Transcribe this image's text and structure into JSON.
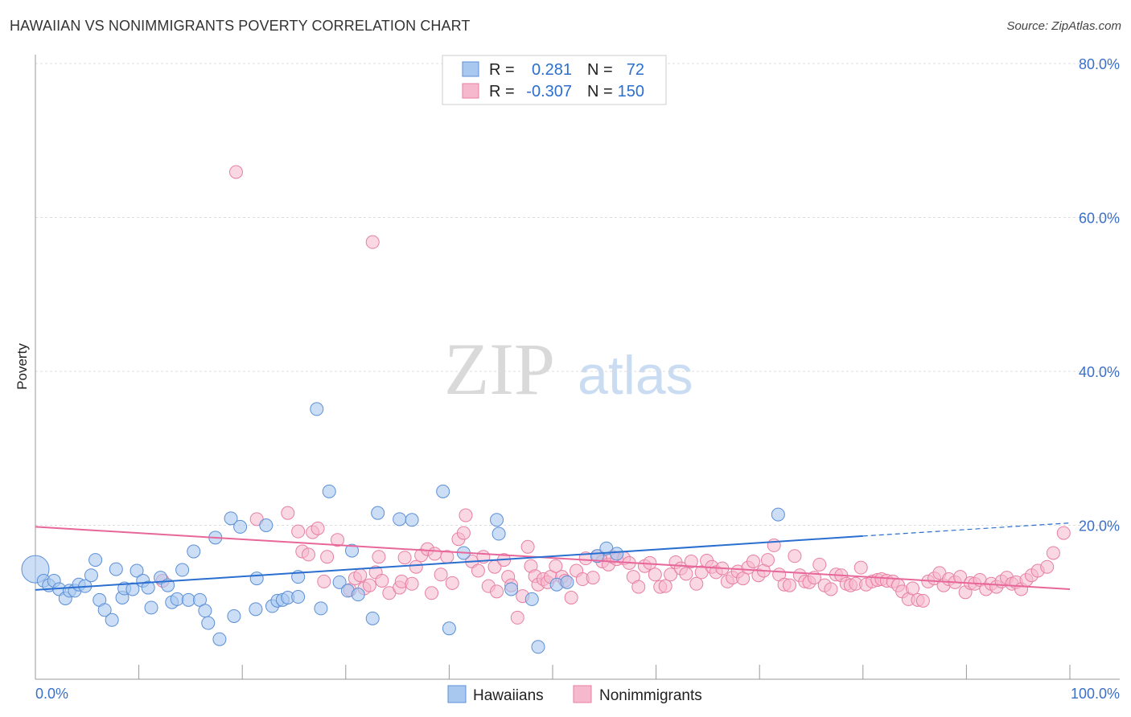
{
  "header": {
    "title": "HAWAIIAN VS NONIMMIGRANTS POVERTY CORRELATION CHART",
    "source": "Source: ZipAtlas.com"
  },
  "watermark": {
    "part1": "ZIP",
    "part2": "atlas"
  },
  "legend": {
    "rows": [
      {
        "r_label": "R =",
        "r_value": "0.281",
        "n_label": "N =",
        "n_value": "72",
        "color": "#a8c8f0"
      },
      {
        "r_label": "R =",
        "r_value": "-0.307",
        "n_label": "N =",
        "n_value": "150",
        "color": "#f5b8cc"
      }
    ]
  },
  "bottom_legend": [
    {
      "label": "Hawaiians",
      "color": "#a8c8f0"
    },
    {
      "label": "Nonimmigrants",
      "color": "#f5b8cc"
    }
  ],
  "colors": {
    "hawaiian_fill": "#a8c8f0",
    "hawaiian_stroke": "#5b8fd6",
    "hawaiian_line": "#2a6fd0",
    "nonimm_fill": "#f5b8cc",
    "nonimm_stroke": "#e77fa2",
    "nonimm_line": "#e8679a",
    "axis_text": "#3b6fc8"
  },
  "chart_data": {
    "type": "scatter",
    "title": "HAWAIIAN VS NONIMMIGRANTS POVERTY CORRELATION CHART",
    "xlabel": "",
    "ylabel": "Poverty",
    "xlim": [
      0,
      100
    ],
    "ylim": [
      0,
      80
    ],
    "x_tick_labels": [
      "0.0%",
      "100.0%"
    ],
    "y_ticks": [
      20,
      40,
      60,
      80
    ],
    "y_tick_labels": [
      "20.0%",
      "40.0%",
      "60.0%",
      "80.0%"
    ],
    "grid": true,
    "legend_position": "top-center",
    "series": [
      {
        "name": "Hawaiians",
        "R": 0.281,
        "N": 72,
        "trend": {
          "x": [
            0,
            80
          ],
          "y": [
            11.6,
            18.6
          ],
          "dashed_extension": {
            "x": [
              80,
              100
            ],
            "y": [
              18.6,
              20.3
            ]
          }
        },
        "points": [
          [
            0.0,
            14.3
          ],
          [
            0.8,
            12.8
          ],
          [
            1.3,
            12.2
          ],
          [
            1.8,
            12.8
          ],
          [
            2.3,
            11.7
          ],
          [
            2.9,
            10.5
          ],
          [
            3.3,
            11.5
          ],
          [
            3.8,
            11.5
          ],
          [
            4.2,
            12.3
          ],
          [
            4.8,
            12.1
          ],
          [
            5.4,
            13.5
          ],
          [
            5.8,
            15.5
          ],
          [
            6.2,
            10.3
          ],
          [
            6.7,
            9.0
          ],
          [
            7.4,
            7.7
          ],
          [
            7.8,
            14.3
          ],
          [
            8.4,
            10.6
          ],
          [
            8.6,
            11.8
          ],
          [
            9.4,
            11.7
          ],
          [
            9.8,
            14.1
          ],
          [
            10.4,
            12.8
          ],
          [
            10.9,
            11.9
          ],
          [
            11.2,
            9.3
          ],
          [
            12.1,
            13.2
          ],
          [
            12.8,
            12.2
          ],
          [
            13.2,
            10.0
          ],
          [
            13.7,
            10.4
          ],
          [
            14.2,
            14.2
          ],
          [
            14.8,
            10.3
          ],
          [
            15.3,
            16.6
          ],
          [
            15.9,
            10.3
          ],
          [
            16.4,
            8.9
          ],
          [
            16.7,
            7.3
          ],
          [
            17.4,
            18.4
          ],
          [
            17.8,
            5.2
          ],
          [
            18.9,
            20.9
          ],
          [
            19.2,
            8.2
          ],
          [
            19.8,
            19.8
          ],
          [
            21.4,
            13.1
          ],
          [
            21.3,
            9.1
          ],
          [
            22.3,
            20.0
          ],
          [
            22.9,
            9.5
          ],
          [
            23.4,
            10.2
          ],
          [
            23.9,
            10.3
          ],
          [
            24.4,
            10.6
          ],
          [
            25.4,
            13.3
          ],
          [
            25.4,
            10.7
          ],
          [
            27.2,
            35.1
          ],
          [
            27.6,
            9.2
          ],
          [
            28.4,
            24.4
          ],
          [
            29.4,
            12.6
          ],
          [
            30.2,
            11.5
          ],
          [
            30.6,
            16.7
          ],
          [
            31.2,
            11.0
          ],
          [
            32.6,
            7.9
          ],
          [
            33.1,
            21.6
          ],
          [
            35.2,
            20.8
          ],
          [
            36.4,
            20.7
          ],
          [
            39.4,
            24.4
          ],
          [
            40.0,
            6.6
          ],
          [
            41.4,
            16.4
          ],
          [
            44.6,
            20.7
          ],
          [
            44.8,
            18.9
          ],
          [
            46.0,
            11.7
          ],
          [
            48.0,
            10.4
          ],
          [
            48.6,
            4.2
          ],
          [
            50.4,
            12.3
          ],
          [
            51.4,
            12.6
          ],
          [
            54.3,
            16.0
          ],
          [
            55.2,
            17.0
          ],
          [
            56.2,
            16.3
          ],
          [
            71.8,
            21.4
          ]
        ]
      },
      {
        "name": "Nonimmigrants",
        "R": -0.307,
        "N": 150,
        "trend": {
          "x": [
            0,
            100
          ],
          "y": [
            19.8,
            11.7
          ]
        },
        "points": [
          [
            19.4,
            65.9
          ],
          [
            32.6,
            56.8
          ],
          [
            12.3,
            12.8
          ],
          [
            21.4,
            20.8
          ],
          [
            24.4,
            21.6
          ],
          [
            25.4,
            19.2
          ],
          [
            25.8,
            16.6
          ],
          [
            26.4,
            16.2
          ],
          [
            26.8,
            19.1
          ],
          [
            27.3,
            19.6
          ],
          [
            27.9,
            12.7
          ],
          [
            28.2,
            15.9
          ],
          [
            29.2,
            18.1
          ],
          [
            30.4,
            11.6
          ],
          [
            30.9,
            13.1
          ],
          [
            31.4,
            13.5
          ],
          [
            31.8,
            11.8
          ],
          [
            32.3,
            12.2
          ],
          [
            32.9,
            13.9
          ],
          [
            33.2,
            15.9
          ],
          [
            33.5,
            12.8
          ],
          [
            34.2,
            11.2
          ],
          [
            35.2,
            11.9
          ],
          [
            35.4,
            12.7
          ],
          [
            35.7,
            15.8
          ],
          [
            36.4,
            12.4
          ],
          [
            36.8,
            14.6
          ],
          [
            37.3,
            16.1
          ],
          [
            37.9,
            16.9
          ],
          [
            38.3,
            11.2
          ],
          [
            38.6,
            16.3
          ],
          [
            39.2,
            13.6
          ],
          [
            39.8,
            15.9
          ],
          [
            40.3,
            12.5
          ],
          [
            40.9,
            18.2
          ],
          [
            41.4,
            19.0
          ],
          [
            41.6,
            21.3
          ],
          [
            42.2,
            15.3
          ],
          [
            42.8,
            14.1
          ],
          [
            43.3,
            15.9
          ],
          [
            43.8,
            12.1
          ],
          [
            44.4,
            14.6
          ],
          [
            44.6,
            11.4
          ],
          [
            45.3,
            15.5
          ],
          [
            45.7,
            13.3
          ],
          [
            46.0,
            12.2
          ],
          [
            46.6,
            8.0
          ],
          [
            47.1,
            10.8
          ],
          [
            47.6,
            17.2
          ],
          [
            47.9,
            14.7
          ],
          [
            48.3,
            13.4
          ],
          [
            48.6,
            12.3
          ],
          [
            49.1,
            13.0
          ],
          [
            49.5,
            12.6
          ],
          [
            49.8,
            13.3
          ],
          [
            50.3,
            14.7
          ],
          [
            50.9,
            13.3
          ],
          [
            51.2,
            12.8
          ],
          [
            51.8,
            10.6
          ],
          [
            52.3,
            14.1
          ],
          [
            52.9,
            13.0
          ],
          [
            53.2,
            15.7
          ],
          [
            53.9,
            13.2
          ],
          [
            54.4,
            16.0
          ],
          [
            54.8,
            15.3
          ],
          [
            55.4,
            14.9
          ],
          [
            55.8,
            15.9
          ],
          [
            56.2,
            15.6
          ],
          [
            56.9,
            15.7
          ],
          [
            57.4,
            15.1
          ],
          [
            57.8,
            13.3
          ],
          [
            58.3,
            12.0
          ],
          [
            58.9,
            14.7
          ],
          [
            59.4,
            15.1
          ],
          [
            59.9,
            13.6
          ],
          [
            60.4,
            12.0
          ],
          [
            60.9,
            12.1
          ],
          [
            61.4,
            13.6
          ],
          [
            61.9,
            15.2
          ],
          [
            62.4,
            14.4
          ],
          [
            62.9,
            13.7
          ],
          [
            63.4,
            15.3
          ],
          [
            63.9,
            12.4
          ],
          [
            64.4,
            13.9
          ],
          [
            64.9,
            15.4
          ],
          [
            65.4,
            14.6
          ],
          [
            65.8,
            13.9
          ],
          [
            66.4,
            14.4
          ],
          [
            66.9,
            12.7
          ],
          [
            67.4,
            13.2
          ],
          [
            67.9,
            14.0
          ],
          [
            68.4,
            13.1
          ],
          [
            68.9,
            14.5
          ],
          [
            69.4,
            15.3
          ],
          [
            69.9,
            13.5
          ],
          [
            70.4,
            14.1
          ],
          [
            70.8,
            15.5
          ],
          [
            71.4,
            17.4
          ],
          [
            71.9,
            13.6
          ],
          [
            72.4,
            12.3
          ],
          [
            72.9,
            12.2
          ],
          [
            73.4,
            16.0
          ],
          [
            73.9,
            13.5
          ],
          [
            74.4,
            12.7
          ],
          [
            74.8,
            12.6
          ],
          [
            75.3,
            13.2
          ],
          [
            75.8,
            14.9
          ],
          [
            76.3,
            12.2
          ],
          [
            76.9,
            11.7
          ],
          [
            77.4,
            13.6
          ],
          [
            77.9,
            13.5
          ],
          [
            78.4,
            12.4
          ],
          [
            78.8,
            12.2
          ],
          [
            79.3,
            12.4
          ],
          [
            79.8,
            14.5
          ],
          [
            80.3,
            12.3
          ],
          [
            80.9,
            12.7
          ],
          [
            81.4,
            12.9
          ],
          [
            81.8,
            13.0
          ],
          [
            82.3,
            12.8
          ],
          [
            82.9,
            12.7
          ],
          [
            83.4,
            12.2
          ],
          [
            83.8,
            11.4
          ],
          [
            84.4,
            10.4
          ],
          [
            84.8,
            11.8
          ],
          [
            85.3,
            10.3
          ],
          [
            85.8,
            10.2
          ],
          [
            86.3,
            12.7
          ],
          [
            86.9,
            13.1
          ],
          [
            87.4,
            13.8
          ],
          [
            87.8,
            12.2
          ],
          [
            88.3,
            13.0
          ],
          [
            88.9,
            12.6
          ],
          [
            89.4,
            13.3
          ],
          [
            89.9,
            11.3
          ],
          [
            90.4,
            12.5
          ],
          [
            90.8,
            12.4
          ],
          [
            91.3,
            12.9
          ],
          [
            91.9,
            11.7
          ],
          [
            92.4,
            12.4
          ],
          [
            92.9,
            12.0
          ],
          [
            93.4,
            12.7
          ],
          [
            93.9,
            13.2
          ],
          [
            94.4,
            12.4
          ],
          [
            94.8,
            12.6
          ],
          [
            95.3,
            11.7
          ],
          [
            95.8,
            12.9
          ],
          [
            96.3,
            13.5
          ],
          [
            96.9,
            14.1
          ],
          [
            97.8,
            14.6
          ],
          [
            98.4,
            16.4
          ],
          [
            99.4,
            19.0
          ]
        ]
      }
    ]
  }
}
